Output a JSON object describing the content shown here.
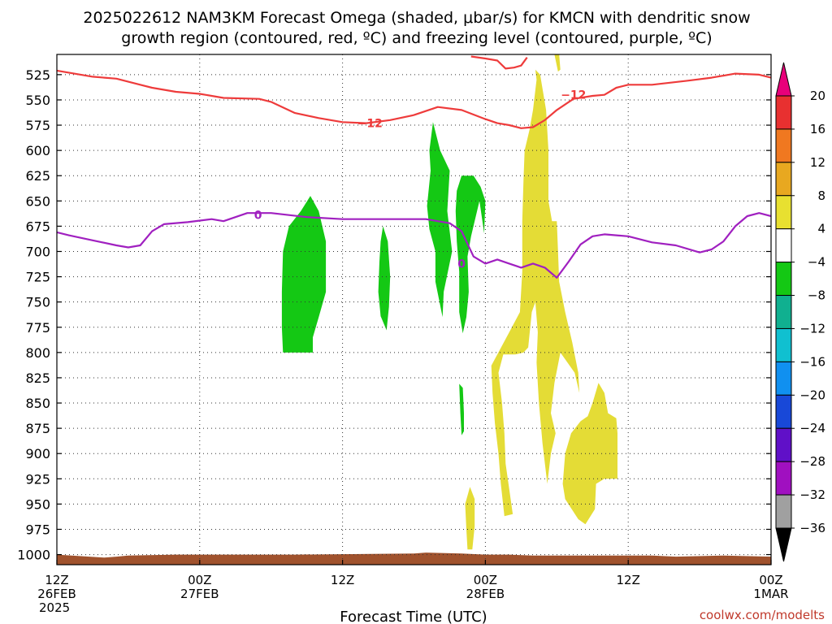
{
  "chart_data": {
    "type": "contour",
    "title_line1": "2025022612 NAM3KM Forecast Omega (shaded, μbar/s) for KMCN with dendritic snow",
    "title_line2": "growth region (contoured, red, ºC) and freezing level (contoured, purple, ºC)",
    "xlabel": "Forecast Time (UTC)",
    "credit": "coolwx.com/modelts",
    "x_unit": "hours since 2025022612",
    "xlim": [
      0,
      60
    ],
    "x_ticks": [
      {
        "x": 0,
        "lines": [
          "12Z",
          "26FEB",
          "2025"
        ]
      },
      {
        "x": 12,
        "lines": [
          "00Z",
          "27FEB"
        ]
      },
      {
        "x": 24,
        "lines": [
          "12Z"
        ]
      },
      {
        "x": 36,
        "lines": [
          "00Z",
          "28FEB"
        ]
      },
      {
        "x": 48,
        "lines": [
          "12Z"
        ]
      },
      {
        "x": 60,
        "lines": [
          "00Z",
          "1MAR"
        ]
      }
    ],
    "y_unit": "hPa",
    "ylim": [
      1010,
      505
    ],
    "y_ticks": [
      525,
      550,
      575,
      600,
      625,
      650,
      675,
      700,
      725,
      750,
      775,
      800,
      825,
      850,
      875,
      900,
      925,
      950,
      975,
      1000
    ],
    "grid": true,
    "colorbar": {
      "labels": [
        "20",
        "16",
        "12",
        "8",
        "4",
        "−4",
        "−8",
        "−12",
        "−16",
        "−20",
        "−24",
        "−28",
        "−32",
        "−36"
      ],
      "colors": [
        "#e8007a",
        "#e83030",
        "#f07820",
        "#e8a820",
        "#e8e030",
        "#ffffff",
        "#14c814",
        "#10b090",
        "#10c0d0",
        "#1090f0",
        "#1848d8",
        "#6010c8",
        "#a010c0",
        "#a0a0a0",
        "#000000"
      ]
    },
    "contours": [
      {
        "name": "-12",
        "color": "#ee3b3b",
        "label": "−12",
        "label_positions": [
          {
            "x": 26.3,
            "y": 573
          },
          {
            "x": 43.4,
            "y": 545
          }
        ],
        "segments": [
          [
            [
              0,
              521
            ],
            [
              1,
              523
            ],
            [
              3,
              527
            ],
            [
              5,
              529
            ],
            [
              7,
              535
            ],
            [
              8,
              538
            ],
            [
              10,
              542
            ],
            [
              12,
              544
            ],
            [
              14,
              548
            ],
            [
              17,
              549
            ],
            [
              18,
              552
            ],
            [
              20,
              563
            ],
            [
              22,
              568
            ],
            [
              24,
              572
            ],
            [
              26,
              573
            ],
            [
              28,
              570
            ],
            [
              30,
              565
            ],
            [
              32,
              557
            ],
            [
              34,
              560
            ],
            [
              36,
              569
            ],
            [
              37,
              573
            ],
            [
              38,
              575
            ],
            [
              39,
              578
            ],
            [
              40,
              577
            ],
            [
              41,
              570
            ],
            [
              42,
              560
            ],
            [
              43.4,
              549
            ],
            [
              45,
              546
            ],
            [
              46,
              545
            ],
            [
              47,
              538
            ],
            [
              48,
              535
            ],
            [
              50,
              535
            ],
            [
              53,
              531
            ],
            [
              55,
              528
            ],
            [
              57,
              524
            ],
            [
              59,
              525
            ],
            [
              60,
              528
            ]
          ],
          [
            [
              34.8,
              507
            ],
            [
              36,
              509
            ],
            [
              37,
              511
            ],
            [
              37.7,
              519
            ],
            [
              38.4,
              518
            ],
            [
              39,
              516
            ],
            [
              39.5,
              508
            ]
          ]
        ]
      },
      {
        "name": "0",
        "color": "#a020c0",
        "label": "0",
        "label_positions": [
          {
            "x": 16.9,
            "y": 664
          },
          {
            "x": 34,
            "y": 712
          }
        ],
        "segments": [
          [
            [
              0,
              681
            ],
            [
              1,
              684
            ],
            [
              3,
              689
            ],
            [
              5,
              694
            ],
            [
              6,
              696
            ],
            [
              7,
              694
            ],
            [
              8,
              680
            ],
            [
              9,
              673
            ],
            [
              11,
              671
            ],
            [
              13,
              668
            ],
            [
              14,
              670
            ],
            [
              15,
              666
            ],
            [
              16,
              662
            ],
            [
              18,
              662
            ],
            [
              21,
              666
            ],
            [
              24,
              668
            ],
            [
              28,
              668
            ],
            [
              31,
              668
            ],
            [
              33,
              672
            ],
            [
              34,
              680
            ],
            [
              35,
              705
            ],
            [
              36,
              712
            ],
            [
              37,
              708
            ],
            [
              38,
              712
            ],
            [
              39,
              716
            ],
            [
              40,
              712
            ],
            [
              41,
              716
            ],
            [
              42,
              726
            ],
            [
              43,
              710
            ],
            [
              44,
              693
            ],
            [
              45,
              685
            ],
            [
              46,
              683
            ],
            [
              48,
              685
            ],
            [
              50,
              691
            ],
            [
              52,
              694
            ],
            [
              54,
              701
            ],
            [
              55,
              698
            ],
            [
              56,
              690
            ],
            [
              57,
              675
            ],
            [
              58,
              665
            ],
            [
              59,
              662
            ],
            [
              60,
              665
            ]
          ]
        ]
      }
    ],
    "shaded_regions": [
      {
        "level": "-8 to -4",
        "color": "#14c814",
        "outline": [
          [
            19,
            700
          ],
          [
            19.5,
            675
          ],
          [
            20.5,
            660
          ],
          [
            21.3,
            645
          ],
          [
            22,
            660
          ],
          [
            22.6,
            690
          ],
          [
            22.6,
            740
          ],
          [
            22,
            765
          ],
          [
            21.5,
            785
          ],
          [
            21.5,
            800
          ],
          [
            19,
            800
          ],
          [
            18.9,
            775
          ],
          [
            18.9,
            740
          ]
        ]
      },
      {
        "level": "-8 to -4",
        "color": "#14c814",
        "outline": [
          [
            27.4,
            675
          ],
          [
            27.8,
            690
          ],
          [
            28,
            725
          ],
          [
            27.9,
            755
          ],
          [
            27.7,
            778
          ],
          [
            27.2,
            764
          ],
          [
            27,
            740
          ],
          [
            27.1,
            710
          ],
          [
            27.2,
            690
          ]
        ]
      },
      {
        "level": "-8 to -4",
        "color": "#14c814",
        "outline": [
          [
            31.6,
            572
          ],
          [
            32.2,
            600
          ],
          [
            33,
            620
          ],
          [
            32.8,
            660
          ],
          [
            33.2,
            700
          ],
          [
            32.5,
            740
          ],
          [
            32.4,
            765
          ],
          [
            31.8,
            730
          ],
          [
            31.8,
            700
          ],
          [
            31.3,
            678
          ],
          [
            31.1,
            655
          ],
          [
            31.4,
            620
          ],
          [
            31.3,
            600
          ]
        ]
      },
      {
        "level": "-8 to -4",
        "color": "#14c814",
        "outline": [
          [
            34,
            625
          ],
          [
            35,
            625
          ],
          [
            35.6,
            636
          ],
          [
            36,
            650
          ],
          [
            35.9,
            682
          ],
          [
            35.5,
            650
          ],
          [
            34.8,
            685
          ],
          [
            34.5,
            705
          ],
          [
            34.6,
            740
          ],
          [
            34.4,
            765
          ],
          [
            34.1,
            781
          ],
          [
            33.8,
            760
          ],
          [
            33.8,
            720
          ],
          [
            33.6,
            690
          ],
          [
            33.5,
            660
          ],
          [
            33.6,
            640
          ]
        ]
      },
      {
        "level": "-8 to -4",
        "color": "#14c814",
        "outline": [
          [
            33.8,
            831
          ],
          [
            34.1,
            835
          ],
          [
            34.2,
            860
          ],
          [
            34.2,
            878
          ],
          [
            34,
            882
          ],
          [
            33.9,
            860
          ]
        ]
      },
      {
        "level": "4 to 8",
        "color": "#e4dc36",
        "outline": [
          [
            40.2,
            520
          ],
          [
            40.6,
            525
          ],
          [
            41.1,
            560
          ],
          [
            41.3,
            600
          ],
          [
            41.3,
            650
          ],
          [
            41.6,
            670
          ],
          [
            42,
            670
          ],
          [
            42.1,
            700
          ],
          [
            42.2,
            730
          ],
          [
            42.7,
            760
          ],
          [
            43.3,
            790
          ],
          [
            43.8,
            820
          ],
          [
            43.9,
            840
          ],
          [
            43.5,
            820
          ],
          [
            42.3,
            800
          ],
          [
            41.8,
            830
          ],
          [
            41.5,
            860
          ],
          [
            41.9,
            880
          ],
          [
            41.5,
            900
          ],
          [
            41.2,
            930
          ],
          [
            40.8,
            890
          ],
          [
            40.5,
            850
          ],
          [
            40.3,
            810
          ],
          [
            40.4,
            780
          ],
          [
            40.2,
            750
          ],
          [
            39.9,
            760
          ],
          [
            39.6,
            795
          ],
          [
            39.2,
            800
          ],
          [
            38.5,
            802
          ],
          [
            37.5,
            802
          ],
          [
            37.1,
            820
          ],
          [
            37.4,
            850
          ],
          [
            37.6,
            880
          ],
          [
            37.7,
            910
          ],
          [
            38.3,
            960
          ],
          [
            37.6,
            962
          ],
          [
            37.3,
            930
          ],
          [
            37.1,
            900
          ],
          [
            36.8,
            870
          ],
          [
            36.6,
            840
          ],
          [
            36.5,
            813
          ],
          [
            37,
            802
          ],
          [
            38,
            780
          ],
          [
            38.9,
            760
          ],
          [
            39.1,
            720
          ],
          [
            39.1,
            670
          ],
          [
            39.2,
            630
          ],
          [
            39.3,
            600
          ],
          [
            39.7,
            580
          ],
          [
            40,
            560
          ],
          [
            40.3,
            530
          ]
        ]
      },
      {
        "level": "4 to 8",
        "color": "#e4dc36",
        "outline": [
          [
            41.8,
            505
          ],
          [
            42.2,
            505
          ],
          [
            42.3,
            520
          ],
          [
            42.1,
            522
          ]
        ]
      },
      {
        "level": "4 to 8",
        "color": "#e4dc36",
        "outline": [
          [
            45.5,
            830
          ],
          [
            46,
            840
          ],
          [
            46.3,
            860
          ],
          [
            47,
            865
          ],
          [
            47.1,
            880
          ],
          [
            47.1,
            925
          ],
          [
            46,
            925
          ],
          [
            45.3,
            930
          ],
          [
            45.2,
            955
          ],
          [
            44.4,
            970
          ],
          [
            43.8,
            965
          ],
          [
            42.7,
            945
          ],
          [
            42.5,
            930
          ],
          [
            42.7,
            900
          ],
          [
            43.2,
            880
          ],
          [
            44,
            868
          ],
          [
            44.6,
            863
          ],
          [
            45,
            850
          ]
        ]
      },
      {
        "level": "4 to 8",
        "color": "#e4dc36",
        "outline": [
          [
            34.7,
            933
          ],
          [
            35.1,
            945
          ],
          [
            35.1,
            972
          ],
          [
            34.9,
            995
          ],
          [
            34.5,
            995
          ],
          [
            34.4,
            975
          ],
          [
            34.3,
            950
          ]
        ]
      }
    ],
    "ground_surface": {
      "color": "#a0522d",
      "pressure": [
        [
          0,
          1000
        ],
        [
          4,
          1003
        ],
        [
          5,
          1002
        ],
        [
          6,
          1001
        ],
        [
          10,
          1000
        ],
        [
          20,
          1000
        ],
        [
          30,
          999
        ],
        [
          31,
          998
        ],
        [
          34,
          999
        ],
        [
          36,
          1000
        ],
        [
          38,
          1000
        ],
        [
          40,
          1001
        ],
        [
          45,
          1001
        ],
        [
          50,
          1001
        ],
        [
          52,
          1002
        ],
        [
          56,
          1001
        ],
        [
          60,
          1002
        ]
      ]
    }
  }
}
